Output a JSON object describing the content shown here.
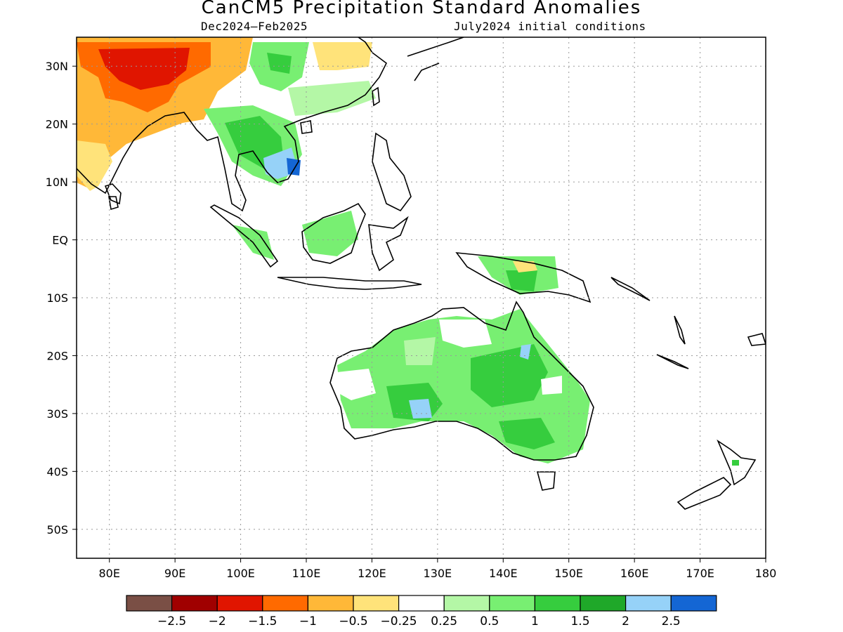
{
  "header": {
    "title": "CanCM5 Precipitation Standard Anomalies",
    "period": "Dec2024–Feb2025",
    "init": "July2024 initial conditions"
  },
  "map": {
    "lon_range": [
      75,
      180
    ],
    "lat_range": [
      -55,
      35
    ],
    "lat_labels": [
      {
        "lat": 30,
        "text": "30N"
      },
      {
        "lat": 20,
        "text": "20N"
      },
      {
        "lat": 10,
        "text": "10N"
      },
      {
        "lat": 0,
        "text": "EQ"
      },
      {
        "lat": -10,
        "text": "10S"
      },
      {
        "lat": -20,
        "text": "20S"
      },
      {
        "lat": -30,
        "text": "30S"
      },
      {
        "lat": -40,
        "text": "40S"
      },
      {
        "lat": -50,
        "text": "50S"
      }
    ],
    "lon_labels": [
      {
        "lon": 80,
        "text": "80E"
      },
      {
        "lon": 90,
        "text": "90E"
      },
      {
        "lon": 100,
        "text": "100E"
      },
      {
        "lon": 110,
        "text": "110E"
      },
      {
        "lon": 120,
        "text": "120E"
      },
      {
        "lon": 130,
        "text": "130E"
      },
      {
        "lon": 140,
        "text": "140E"
      },
      {
        "lon": 150,
        "text": "150E"
      },
      {
        "lon": 160,
        "text": "160E"
      },
      {
        "lon": 170,
        "text": "170E"
      },
      {
        "lon": 180,
        "text": "180"
      }
    ],
    "grid": true
  },
  "colorbar": {
    "colors": [
      "#7a4f45",
      "#a00000",
      "#e01500",
      "#ff6a00",
      "#ffb838",
      "#ffe37a",
      "#ffffff",
      "#b4f7a6",
      "#78ef72",
      "#36cd3e",
      "#1fa829",
      "#96d2f8",
      "#1466d4"
    ],
    "labels": [
      "−2.5",
      "−2",
      "−1.5",
      "−1",
      "−0.5",
      "−0.25",
      "0.25",
      "0.5",
      "1",
      "1.5",
      "2",
      "2.5"
    ]
  }
}
